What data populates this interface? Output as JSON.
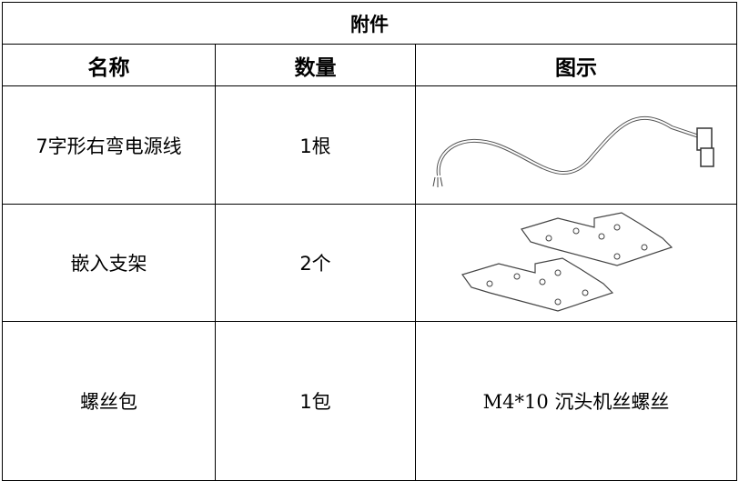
{
  "table": {
    "title": "附件",
    "headers": [
      "名称",
      "数量",
      "图示"
    ],
    "rows": [
      [
        "7字形右弯电源线",
        "1根"
      ],
      [
        "嵌入支架",
        "2个"
      ],
      [
        "螺丝包",
        "1包",
        "M4*10 沉头机丝螺丝"
      ]
    ]
  }
}
